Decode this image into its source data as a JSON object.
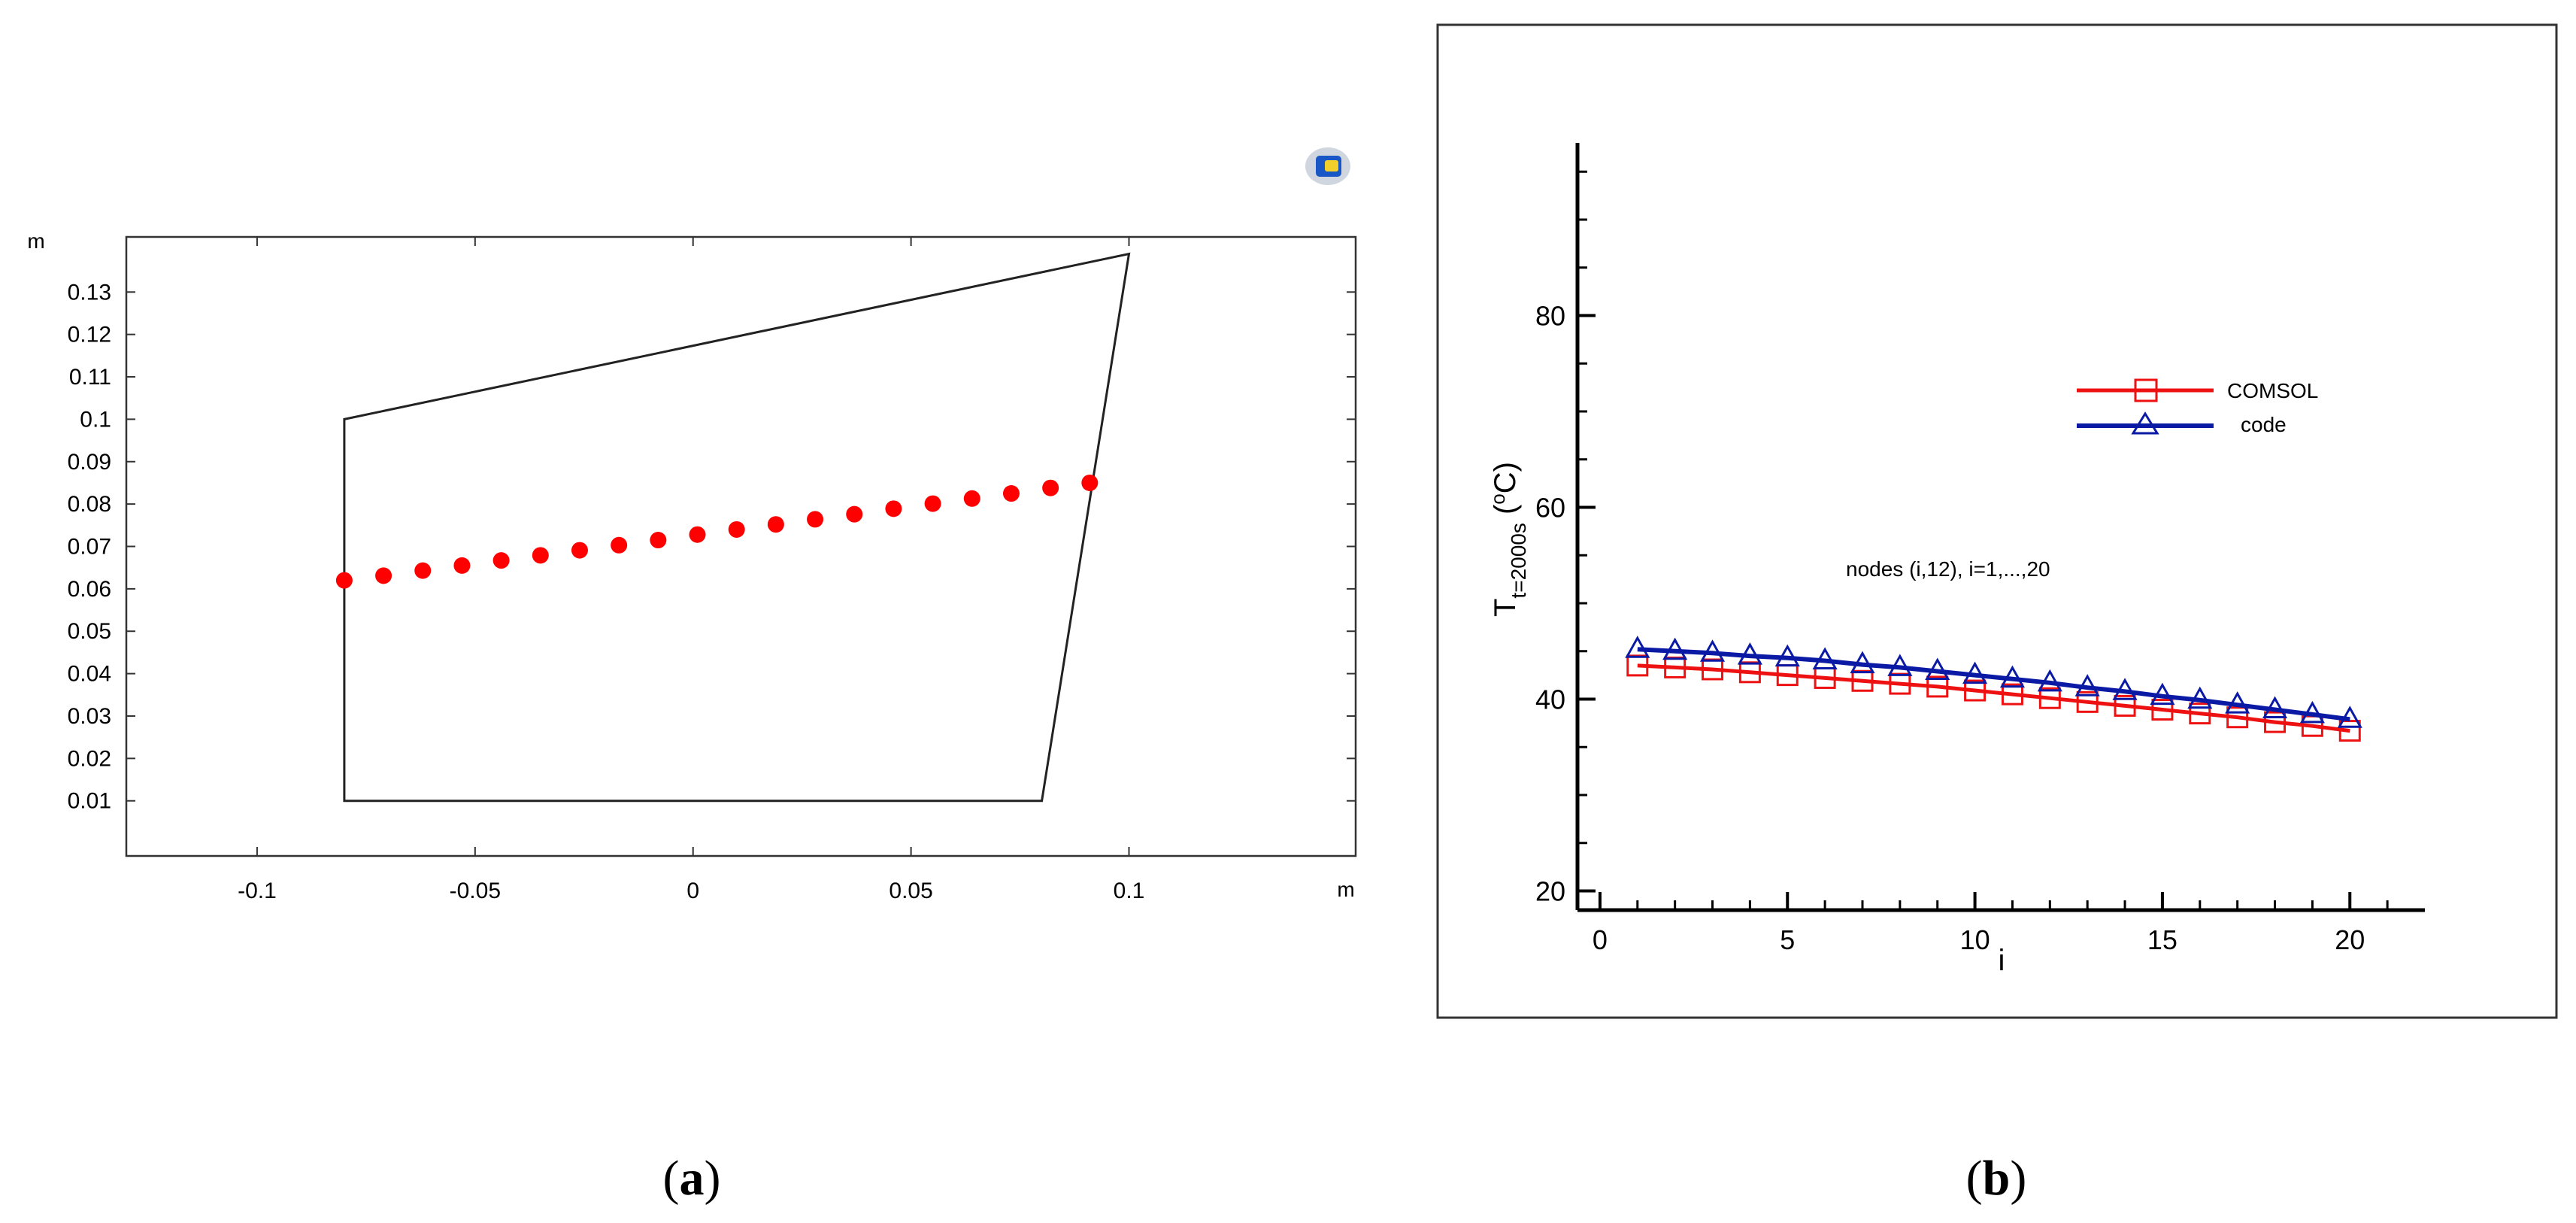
{
  "chart_data": [
    {
      "panel": "a",
      "type": "scatter",
      "caption_letter": "a",
      "xunit": "m",
      "yunit": "m",
      "xlim": [
        -0.13,
        0.152
      ],
      "ylim": [
        -0.003,
        0.143
      ],
      "xticks": [
        -0.1,
        -0.05,
        0,
        0.05,
        0.1
      ],
      "xtick_labels": [
        "-0.1",
        "-0.05",
        "0",
        "0.05",
        "0.1"
      ],
      "yticks": [
        0.01,
        0.02,
        0.03,
        0.04,
        0.05,
        0.06,
        0.07,
        0.08,
        0.09,
        0.1,
        0.11,
        0.12,
        0.13
      ],
      "ytick_labels": [
        "0.01",
        "0.02",
        "0.03",
        "0.04",
        "0.05",
        "0.06",
        "0.07",
        "0.08",
        "0.09",
        "0.1",
        "0.11",
        "0.12",
        "0.13"
      ],
      "polygon": [
        [
          -0.08,
          0.1
        ],
        [
          0.1,
          0.139
        ],
        [
          0.08,
          0.01
        ],
        [
          -0.08,
          0.01
        ]
      ],
      "points": {
        "x": [
          -0.08,
          -0.071,
          -0.062,
          -0.053,
          -0.044,
          -0.035,
          -0.026,
          -0.017,
          -0.008,
          0.001,
          0.01,
          0.019,
          0.028,
          0.037,
          0.046,
          0.055,
          0.064,
          0.073,
          0.082,
          0.091
        ],
        "y": [
          0.062,
          0.0631,
          0.0643,
          0.0655,
          0.0667,
          0.0679,
          0.0691,
          0.0703,
          0.0715,
          0.0728,
          0.074,
          0.0752,
          0.0764,
          0.0776,
          0.0789,
          0.0801,
          0.0813,
          0.0825,
          0.0838,
          0.085
        ],
        "color": "#ff0000"
      }
    },
    {
      "panel": "b",
      "type": "line",
      "caption_letter": "b",
      "xlabel": "i",
      "ylabel_main": "T",
      "ylabel_sub": "t=2000s",
      "ylabel_unit_open": " (",
      "ylabel_unit_sup": "o",
      "ylabel_unit_close": "C)",
      "annotation": "nodes (i,12), i=1,...,20",
      "xlim": [
        -0.6,
        22
      ],
      "ylim": [
        18,
        98
      ],
      "xticks": [
        0,
        5,
        10,
        15,
        20
      ],
      "xtick_labels": [
        "0",
        "5",
        "10",
        "15",
        "20"
      ],
      "yticks": [
        20,
        40,
        60,
        80
      ],
      "ytick_labels": [
        "20",
        "40",
        "60",
        "80"
      ],
      "x": [
        1,
        2,
        3,
        4,
        5,
        6,
        7,
        8,
        9,
        10,
        11,
        12,
        13,
        14,
        15,
        16,
        17,
        18,
        19,
        20
      ],
      "series": [
        {
          "name": "COMSOL",
          "color": "#ee1111",
          "marker": "square",
          "values": [
            43.5,
            43.3,
            43.1,
            42.8,
            42.5,
            42.2,
            41.9,
            41.6,
            41.3,
            40.9,
            40.5,
            40.1,
            39.7,
            39.3,
            38.9,
            38.5,
            38.1,
            37.6,
            37.2,
            36.7
          ]
        },
        {
          "name": "code",
          "color": "#0a1aa5",
          "marker": "triangle",
          "values": [
            45.2,
            45.0,
            44.8,
            44.5,
            44.3,
            44.0,
            43.6,
            43.3,
            42.9,
            42.5,
            42.1,
            41.7,
            41.2,
            40.8,
            40.3,
            39.9,
            39.4,
            38.9,
            38.4,
            37.9
          ]
        }
      ]
    }
  ]
}
